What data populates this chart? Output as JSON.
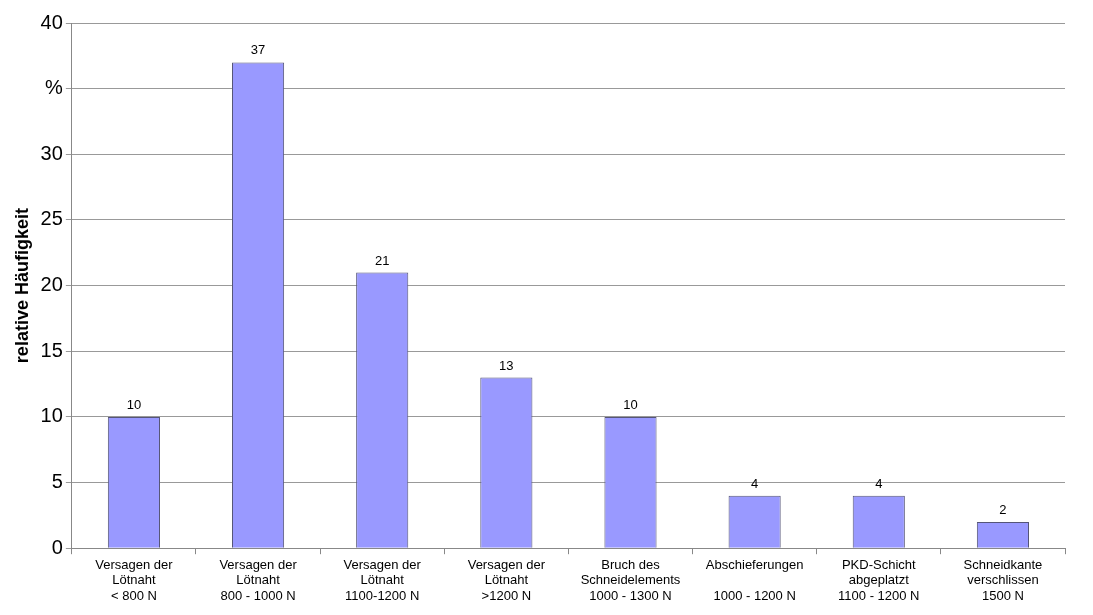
{
  "chart_data": {
    "type": "bar",
    "ylabel": "relative Häufigkeit",
    "categories": [
      "Versagen der\nLötnaht\n< 800 N",
      "Versagen der\nLötnaht\n800 - 1000 N",
      "Versagen der\nLötnaht\n1100-1200 N",
      "Versagen der\nLötnaht\n>1200 N",
      "Bruch des\nSchneidelements\n1000 - 1300 N",
      "Abschieferungen\n\n1000 - 1200 N",
      "PKD-Schicht\nabgeplatzt\n1100 - 1200 N",
      "Schneidkante\nverschlissen\n1500 N"
    ],
    "values": [
      10,
      37,
      21,
      13,
      10,
      4,
      4,
      2
    ],
    "color": "#9999ff",
    "ylim": [
      0,
      40
    ],
    "yticks": [
      0,
      5,
      10,
      15,
      20,
      25,
      30,
      {
        "value": 35,
        "label": "%"
      },
      40
    ],
    "grid": "y",
    "data_labels": true
  }
}
